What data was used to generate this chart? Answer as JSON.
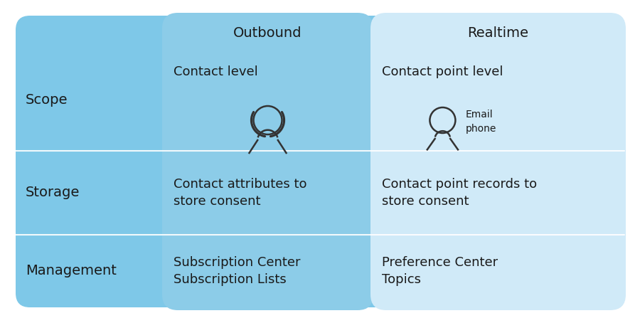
{
  "bg_color": "#ffffff",
  "main_bg": "#7ec8e8",
  "outbound_col_bg": "#7ec8e8",
  "realtime_col_bg": "#d6eef8",
  "header_outbound_bg": "#d6eef8",
  "header_realtime_bg": "#d6eef8",
  "separator_color": "#a8d8ea",
  "text_color": "#1a1a1a",
  "icon_color": "#333333",
  "row_labels": [
    "Scope",
    "Storage",
    "Management"
  ],
  "col_headers": [
    "Outbound",
    "Realtime"
  ],
  "outbound_scope_text": "Contact level",
  "outbound_storage_text": "Contact attributes to\nstore consent",
  "outbound_mgmt_text": "Subscription Center\nSubscription Lists",
  "realtime_scope_text": "Contact point level",
  "realtime_storage_text": "Contact point records to\nstore consent",
  "realtime_mgmt_text": "Preference Center\nTopics",
  "email_phone_label": "Email\nphone",
  "header_fontsize": 14,
  "cell_fontsize": 13,
  "label_fontsize": 14
}
